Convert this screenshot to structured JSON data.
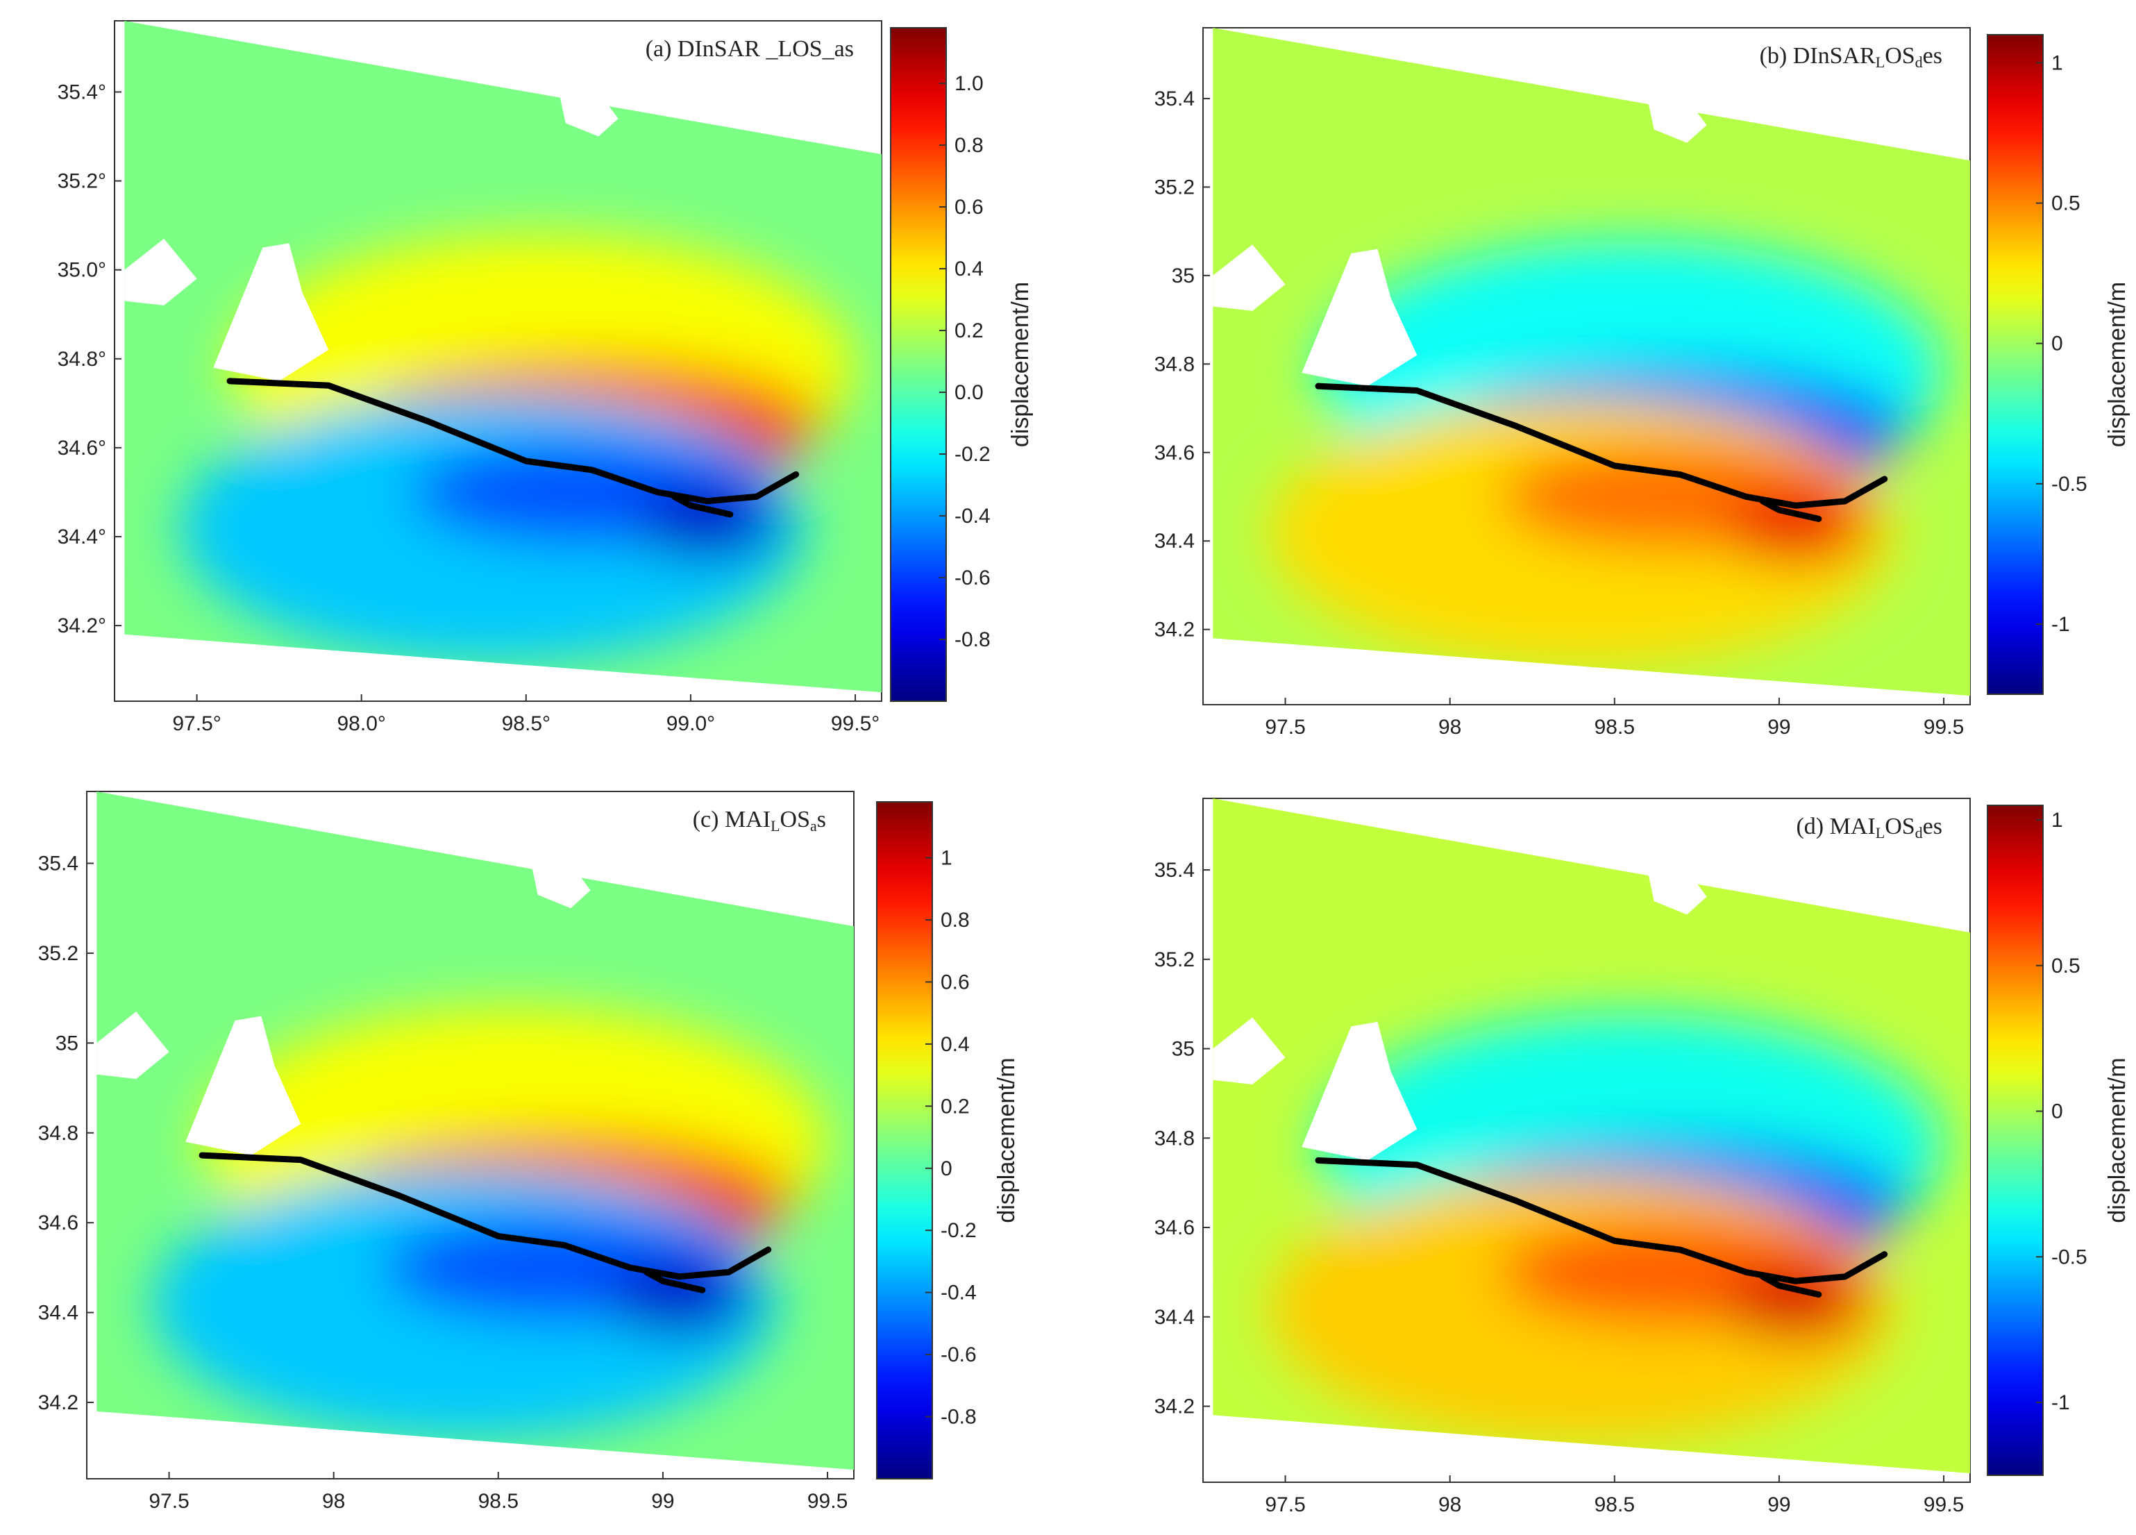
{
  "figure": {
    "description_units": "displacement/m"
  },
  "chart_data": [
    {
      "type": "heatmap",
      "panel": "a",
      "title": "(a) DInSAR _LOS_as",
      "title_parts": [
        {
          "t": "(a) DInSAR _LOS_as",
          "sub": false
        }
      ],
      "xlabel": "",
      "ylabel": "",
      "xlim": [
        97.25,
        99.58
      ],
      "ylim": [
        34.03,
        35.56
      ],
      "x_ticks": [
        97.5,
        98.0,
        98.5,
        99.0,
        99.5
      ],
      "x_tick_labels": [
        "97.5°",
        "98.0°",
        "98.5°",
        "99.0°",
        "99.5°"
      ],
      "y_ticks": [
        34.2,
        34.4,
        34.6,
        34.8,
        35.0,
        35.2,
        35.4
      ],
      "y_tick_labels": [
        "34.2°",
        "34.4°",
        "34.6°",
        "34.8°",
        "35.0°",
        "35.2°",
        "35.4°"
      ],
      "colorbar": {
        "label": "displacement/m",
        "range": [
          -1.0,
          1.18
        ],
        "ticks": [
          -0.8,
          -0.6,
          -0.4,
          -0.2,
          0.0,
          0.2,
          0.4,
          0.6,
          0.8,
          1.0
        ],
        "tick_labels": [
          "-0.8",
          "-0.6",
          "-0.4",
          "-0.2",
          "0.0",
          "0.2",
          "0.4",
          "0.6",
          "0.8",
          "1.0"
        ]
      },
      "north_sign": 1,
      "colormap": "jet"
    },
    {
      "type": "heatmap",
      "panel": "b",
      "title": "(b) DInSAR_LOS_des",
      "title_parts": [
        {
          "t": "(b) DInSAR",
          "sub": false
        },
        {
          "t": "L",
          "sub": true
        },
        {
          "t": "OS",
          "sub": false
        },
        {
          "t": "d",
          "sub": true
        },
        {
          "t": "es",
          "sub": false
        }
      ],
      "xlabel": "",
      "ylabel": "",
      "xlim": [
        97.25,
        99.58
      ],
      "ylim": [
        34.03,
        35.56
      ],
      "x_ticks": [
        97.5,
        98,
        98.5,
        99,
        99.5
      ],
      "x_tick_labels": [
        "97.5",
        "98",
        "98.5",
        "99",
        "99.5"
      ],
      "y_ticks": [
        34.2,
        34.4,
        34.6,
        34.8,
        35,
        35.2,
        35.4
      ],
      "y_tick_labels": [
        "34.2",
        "34.4",
        "34.6",
        "34.8",
        "35",
        "35.2",
        "35.4"
      ],
      "colorbar": {
        "label": "displacement/m",
        "range": [
          -1.25,
          1.1
        ],
        "ticks": [
          -1,
          -0.5,
          0,
          0.5,
          1
        ],
        "tick_labels": [
          "-1",
          "-0.5",
          "0",
          "0.5",
          "1"
        ]
      },
      "north_sign": -1,
      "colormap": "jet"
    },
    {
      "type": "heatmap",
      "panel": "c",
      "title": "(c) MAI_LOS_as",
      "title_parts": [
        {
          "t": "(c) MAI",
          "sub": false
        },
        {
          "t": "L",
          "sub": true
        },
        {
          "t": "OS",
          "sub": false
        },
        {
          "t": "a",
          "sub": true
        },
        {
          "t": "s",
          "sub": false
        }
      ],
      "xlabel": "",
      "ylabel": "",
      "xlim": [
        97.25,
        99.58
      ],
      "ylim": [
        34.03,
        35.56
      ],
      "x_ticks": [
        97.5,
        98,
        98.5,
        99,
        99.5
      ],
      "x_tick_labels": [
        "97.5",
        "98",
        "98.5",
        "99",
        "99.5"
      ],
      "y_ticks": [
        34.2,
        34.4,
        34.6,
        34.8,
        35,
        35.2,
        35.4
      ],
      "y_tick_labels": [
        "34.2",
        "34.4",
        "34.6",
        "34.8",
        "35",
        "35.2",
        "35.4"
      ],
      "colorbar": {
        "label": "displacement/m",
        "range": [
          -1.0,
          1.18
        ],
        "ticks": [
          -0.8,
          -0.6,
          -0.4,
          -0.2,
          0,
          0.2,
          0.4,
          0.6,
          0.8,
          1
        ],
        "tick_labels": [
          "-0.8",
          "-0.6",
          "-0.4",
          "-0.2",
          "0",
          "0.2",
          "0.4",
          "0.6",
          "0.8",
          "1"
        ]
      },
      "north_sign": 1,
      "colormap": "jet"
    },
    {
      "type": "heatmap",
      "panel": "d",
      "title": "(d) MAI_LOS_des",
      "title_parts": [
        {
          "t": "(d) MAI",
          "sub": false
        },
        {
          "t": "L",
          "sub": true
        },
        {
          "t": "OS",
          "sub": false
        },
        {
          "t": "d",
          "sub": true
        },
        {
          "t": "es",
          "sub": false
        }
      ],
      "xlabel": "",
      "ylabel": "",
      "xlim": [
        97.25,
        99.58
      ],
      "ylim": [
        34.03,
        35.56
      ],
      "x_ticks": [
        97.5,
        98,
        98.5,
        99,
        99.5
      ],
      "x_tick_labels": [
        "97.5",
        "98",
        "98.5",
        "99",
        "99.5"
      ],
      "y_ticks": [
        34.2,
        34.4,
        34.6,
        34.8,
        35,
        35.2,
        35.4
      ],
      "y_tick_labels": [
        "34.2",
        "34.4",
        "34.6",
        "34.8",
        "35",
        "35.2",
        "35.4"
      ],
      "colorbar": {
        "label": "displacement/m",
        "range": [
          -1.25,
          1.05
        ],
        "ticks": [
          -1,
          -0.5,
          0,
          0.5,
          1
        ],
        "tick_labels": [
          "-1",
          "-0.5",
          "0",
          "0.5",
          "1"
        ]
      },
      "north_sign": -1,
      "colormap": "jet"
    }
  ],
  "fault_trace": {
    "main": [
      [
        97.6,
        34.75
      ],
      [
        97.9,
        34.74
      ],
      [
        98.2,
        34.66
      ],
      [
        98.5,
        34.57
      ],
      [
        98.7,
        34.55
      ],
      [
        98.9,
        34.5
      ],
      [
        99.05,
        34.48
      ],
      [
        99.2,
        34.49
      ],
      [
        99.32,
        34.54
      ]
    ],
    "branch": [
      [
        98.95,
        34.49
      ],
      [
        99.0,
        34.47
      ],
      [
        99.12,
        34.45
      ]
    ]
  },
  "coverage_footprint": [
    [
      97.28,
      35.56
    ],
    [
      99.58,
      35.26
    ],
    [
      99.58,
      34.05
    ],
    [
      97.28,
      34.18
    ]
  ]
}
